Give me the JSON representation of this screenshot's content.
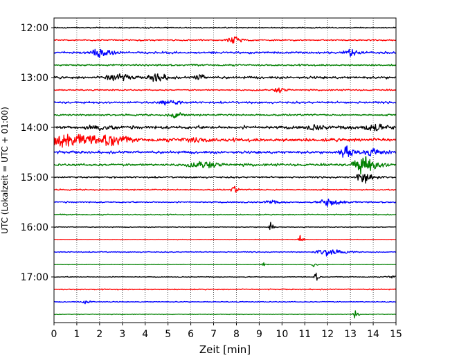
{
  "chart_data": {
    "type": "line",
    "title": "",
    "xlabel": "Zeit  [min]",
    "ylabel": "UTC (Lokalzeit = UTC + 01:00)",
    "xlim": [
      0,
      15
    ],
    "x_ticks": [
      0,
      1,
      2,
      3,
      4,
      5,
      6,
      7,
      8,
      9,
      10,
      11,
      12,
      13,
      14,
      15
    ],
    "y_ticks": [
      "12:00",
      "13:00",
      "14:00",
      "15:00",
      "16:00",
      "17:00"
    ],
    "grid": "vertical dotted",
    "rows_per_hour": 4,
    "minutes_per_row": 15,
    "series_colors": [
      "#000000",
      "#ff0000",
      "#0000ff",
      "#008000"
    ],
    "traces": [
      {
        "start": "12:00",
        "noise": 0.35,
        "events": []
      },
      {
        "start": "12:15",
        "noise": 0.45,
        "events": [
          {
            "t": 7.9,
            "amp": 3.0,
            "dur": 0.5
          }
        ]
      },
      {
        "start": "12:30",
        "noise": 0.7,
        "events": [
          {
            "t": 2.0,
            "amp": 4.0,
            "dur": 0.7
          },
          {
            "t": 13.0,
            "amp": 3.0,
            "dur": 0.5
          }
        ]
      },
      {
        "start": "12:45",
        "noise": 0.55,
        "events": []
      },
      {
        "start": "13:00",
        "noise": 0.8,
        "events": [
          {
            "t": 2.7,
            "amp": 4.0,
            "dur": 0.8
          },
          {
            "t": 4.5,
            "amp": 4.5,
            "dur": 0.6
          },
          {
            "t": 6.4,
            "amp": 3.0,
            "dur": 0.4
          }
        ]
      },
      {
        "start": "13:15",
        "noise": 0.45,
        "events": [
          {
            "t": 9.9,
            "amp": 2.0,
            "dur": 0.5
          }
        ]
      },
      {
        "start": "13:30",
        "noise": 0.65,
        "events": [
          {
            "t": 5.0,
            "amp": 2.5,
            "dur": 0.8
          }
        ]
      },
      {
        "start": "13:45",
        "noise": 0.55,
        "events": [
          {
            "t": 5.3,
            "amp": 3.0,
            "dur": 0.5
          }
        ]
      },
      {
        "start": "14:00",
        "noise": 1.0,
        "events": [
          {
            "t": 2.0,
            "amp": 2.5,
            "dur": 1.5
          },
          {
            "t": 11.5,
            "amp": 2.5,
            "dur": 1.0
          },
          {
            "t": 14.0,
            "amp": 3.5,
            "dur": 1.0
          }
        ]
      },
      {
        "start": "14:15",
        "noise": 1.1,
        "events": [
          {
            "t": 0.5,
            "amp": 7.0,
            "dur": 1.8
          },
          {
            "t": 2.5,
            "amp": 6.0,
            "dur": 0.9
          },
          {
            "t": 6.0,
            "amp": 2.5,
            "dur": 1.5
          }
        ]
      },
      {
        "start": "14:30",
        "noise": 0.85,
        "events": [
          {
            "t": 12.8,
            "amp": 6.5,
            "dur": 0.4
          },
          {
            "t": 14.0,
            "amp": 3.0,
            "dur": 1.0
          }
        ]
      },
      {
        "start": "14:45",
        "noise": 0.8,
        "events": [
          {
            "t": 13.6,
            "amp": 8.0,
            "dur": 0.7
          },
          {
            "t": 6.5,
            "amp": 3.0,
            "dur": 1.2
          }
        ]
      },
      {
        "start": "15:00",
        "noise": 0.55,
        "events": [
          {
            "t": 13.6,
            "amp": 5.0,
            "dur": 0.5
          }
        ]
      },
      {
        "start": "15:15",
        "noise": 0.4,
        "events": [
          {
            "t": 7.9,
            "amp": 3.0,
            "dur": 0.2
          }
        ]
      },
      {
        "start": "15:30",
        "noise": 0.45,
        "events": [
          {
            "t": 12.1,
            "amp": 3.5,
            "dur": 0.8
          },
          {
            "t": 9.5,
            "amp": 2.0,
            "dur": 0.5
          }
        ]
      },
      {
        "start": "15:45",
        "noise": 0.35,
        "events": []
      },
      {
        "start": "16:00",
        "noise": 0.25,
        "events": [
          {
            "t": 9.5,
            "amp": 4.0,
            "dur": 0.15
          }
        ]
      },
      {
        "start": "16:15",
        "noise": 0.2,
        "events": [
          {
            "t": 10.8,
            "amp": 3.5,
            "dur": 0.15
          }
        ]
      },
      {
        "start": "16:30",
        "noise": 0.3,
        "events": [
          {
            "t": 12.0,
            "amp": 3.0,
            "dur": 0.8
          }
        ]
      },
      {
        "start": "16:45",
        "noise": 0.2,
        "events": [
          {
            "t": 11.4,
            "amp": 2.5,
            "dur": 0.15
          },
          {
            "t": 9.2,
            "amp": 1.5,
            "dur": 0.2
          }
        ]
      },
      {
        "start": "17:00",
        "noise": 0.25,
        "events": [
          {
            "t": 11.5,
            "amp": 3.5,
            "dur": 0.15
          },
          {
            "t": 14.8,
            "amp": 1.5,
            "dur": 0.4
          }
        ]
      },
      {
        "start": "17:15",
        "noise": 0.35,
        "events": []
      },
      {
        "start": "17:30",
        "noise": 0.3,
        "events": [
          {
            "t": 1.4,
            "amp": 1.5,
            "dur": 0.3
          }
        ]
      },
      {
        "start": "17:45",
        "noise": 0.2,
        "events": [
          {
            "t": 13.2,
            "amp": 3.5,
            "dur": 0.15
          }
        ]
      }
    ]
  }
}
